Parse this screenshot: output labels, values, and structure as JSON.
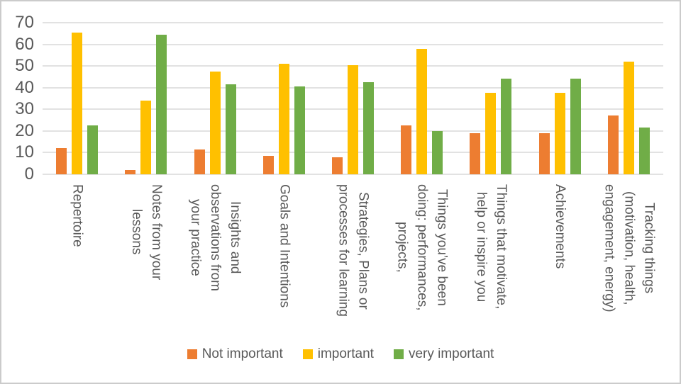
{
  "chart_data": {
    "type": "bar",
    "title": "",
    "xlabel": "",
    "ylabel": "",
    "ylim": [
      0,
      70
    ],
    "y_ticks": [
      0,
      10,
      20,
      30,
      40,
      50,
      60,
      70
    ],
    "grid": true,
    "legend_position": "bottom",
    "categories": [
      "Repertoire",
      "Notes from your lessons",
      "Insights and observations from your practice",
      "Goals and Intentions",
      "Strategies, Plans or processes for learning",
      "Things you’ve been doing: performances, projects,",
      "Things that motivate, help or inspire you",
      "Achievements",
      "Tracking things (motivation, health, engagement, energy)"
    ],
    "categories_wrapped": [
      "Repertoire",
      "Notes from your\nlessons",
      "Insights and\nobservations from\nyour practice",
      "Goals and Intentions",
      "Strategies, Plans or\nprocesses for learning",
      "Things you’ve been\ndoing: performances,\nprojects,",
      "Things that motivate,\nhelp or inspire you",
      "Achievements",
      "Tracking things\n(motivation, health,\nengagement, energy)"
    ],
    "series": [
      {
        "name": "Not important",
        "color": "#ED7D31",
        "values": [
          12,
          2,
          11.5,
          8.5,
          8,
          22.5,
          19,
          19,
          27
        ]
      },
      {
        "name": "important",
        "color": "#FFC000",
        "values": [
          65.5,
          34,
          47.5,
          51,
          50.5,
          58,
          37.5,
          37.5,
          52
        ]
      },
      {
        "name": "very important",
        "color": "#70AD47",
        "values": [
          22.5,
          64.5,
          41.5,
          40.5,
          42.5,
          20,
          44,
          44,
          21.5
        ]
      }
    ],
    "colors": {
      "gridline": "#e2e2e2",
      "axis_text": "#595959",
      "frame_border": "#cbcbcb",
      "background": "#ffffff"
    }
  }
}
